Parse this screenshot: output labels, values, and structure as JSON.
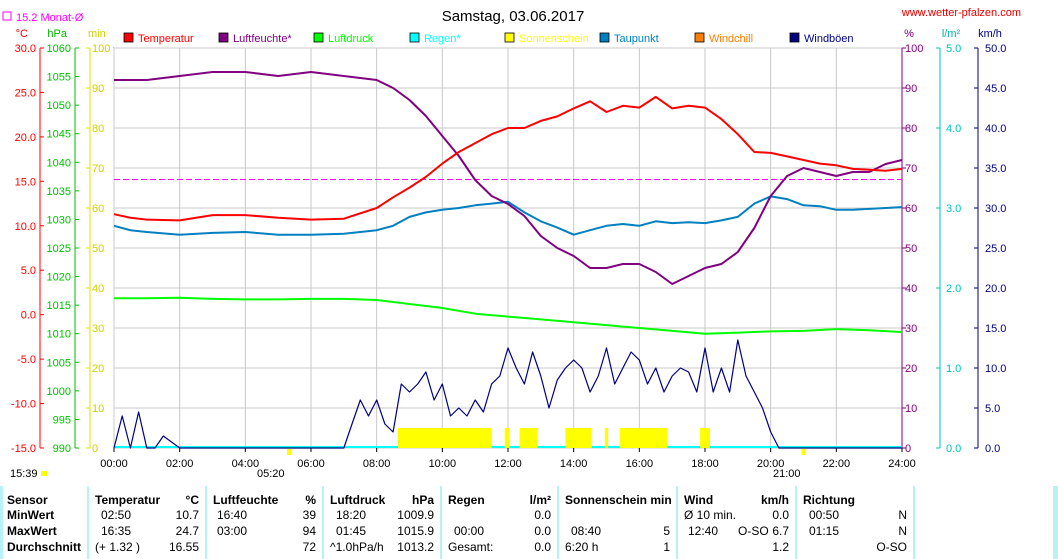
{
  "title": "Samstag, 03.06.2017",
  "website": "www.wetter-pfalzen.com",
  "month_avg_label": "15.2 Monat-Ø",
  "chart_data": {
    "type": "line",
    "x_unit": "hours",
    "xlim": [
      0,
      24
    ],
    "x_ticks": [
      "00:00",
      "02:00",
      "04:00",
      "06:00",
      "08:00",
      "10:00",
      "12:00",
      "14:00",
      "16:00",
      "18:00",
      "20:00",
      "22:00",
      "24:00"
    ],
    "sunrise_label": "05:20",
    "sunset_label": "21:00",
    "dawn_label": "15:39",
    "month_avg_temp": 15.2,
    "axes": {
      "temp": {
        "unit": "°C",
        "ylim": [
          -15,
          30
        ],
        "ticks": [
          "30.0",
          "25.0",
          "20.0",
          "15.0",
          "10.0",
          "5.0",
          "0.0",
          "-5.0",
          "-10.0",
          "-15.0"
        ],
        "color": "#ff0000"
      },
      "pressure": {
        "unit": "hPa",
        "ylim": [
          990,
          1060
        ],
        "ticks": [
          "1060",
          "1055",
          "1050",
          "1045",
          "1040",
          "1035",
          "1030",
          "1025",
          "1020",
          "1015",
          "1010",
          "1005",
          "1000",
          "995",
          "990"
        ],
        "color": "#00c000"
      },
      "sunmin": {
        "unit": "min",
        "ylim": [
          0,
          100
        ],
        "ticks": [
          "100",
          "90",
          "80",
          "70",
          "60",
          "50",
          "40",
          "30",
          "20",
          "10",
          "0"
        ],
        "color": "#e0e000"
      },
      "humidity": {
        "unit": "%",
        "ylim": [
          0,
          100
        ],
        "ticks": [
          "100",
          "90",
          "80",
          "70",
          "60",
          "50",
          "40",
          "30",
          "20",
          "10",
          "0"
        ],
        "color": "#800080"
      },
      "rain": {
        "unit": "l/m²",
        "ylim": [
          0,
          5
        ],
        "ticks": [
          "5.0",
          "4.0",
          "3.0",
          "2.0",
          "1.0",
          "0.0"
        ],
        "color": "#00c0c0"
      },
      "wind": {
        "unit": "km/h",
        "ylim": [
          0,
          50
        ],
        "ticks": [
          "50.0",
          "45.0",
          "40.0",
          "35.0",
          "30.0",
          "25.0",
          "20.0",
          "15.0",
          "10.0",
          "5.0",
          "0.0"
        ],
        "color": "#000080"
      }
    },
    "legend": [
      {
        "name": "Temperatur",
        "color": "#ff0000"
      },
      {
        "name": "Luftfeuchte*",
        "color": "#800080"
      },
      {
        "name": "Luftdruck",
        "color": "#00ff00"
      },
      {
        "name": "Regen*",
        "color": "#00ffff"
      },
      {
        "name": "Sonnenschein",
        "color": "#ffff00"
      },
      {
        "name": "Taupunkt",
        "color": "#0080c0"
      },
      {
        "name": "Windchill",
        "color": "#ff8000"
      },
      {
        "name": "Windböen",
        "color": "#000080"
      }
    ],
    "series": [
      {
        "key": "temperature",
        "axis": "temp",
        "color": "#ff0000",
        "x": [
          0,
          0.5,
          1,
          2,
          3,
          4,
          5,
          6,
          7,
          8,
          8.5,
          9,
          9.5,
          10,
          10.5,
          11,
          11.5,
          12,
          12.5,
          13,
          13.5,
          14,
          14.5,
          15,
          15.5,
          16,
          16.5,
          17,
          17.5,
          18,
          18.5,
          19,
          19.5,
          20,
          20.5,
          21,
          21.5,
          22,
          22.5,
          23,
          23.5,
          24
        ],
        "values": [
          11.3,
          10.9,
          10.7,
          10.6,
          11.2,
          11.2,
          10.9,
          10.7,
          10.8,
          12.0,
          13.2,
          14.3,
          15.5,
          17.0,
          18.3,
          19.3,
          20.3,
          21.0,
          21.0,
          21.8,
          22.3,
          23.2,
          24.0,
          22.8,
          23.5,
          23.3,
          24.5,
          23.2,
          23.5,
          23.3,
          22.0,
          20.3,
          18.3,
          18.2,
          17.8,
          17.4,
          17.0,
          16.8,
          16.4,
          16.3,
          16.2,
          16.4
        ]
      },
      {
        "key": "dewpoint",
        "axis": "temp",
        "color": "#0080c0",
        "x": [
          0,
          0.5,
          1,
          2,
          3,
          4,
          5,
          6,
          7,
          8,
          8.5,
          9,
          9.5,
          10,
          10.5,
          11,
          11.5,
          12,
          12.5,
          13,
          13.5,
          14,
          14.5,
          15,
          15.5,
          16,
          16.5,
          17,
          17.5,
          18,
          18.5,
          19,
          19.5,
          20,
          20.5,
          21,
          21.5,
          22,
          22.5,
          23,
          23.5,
          24
        ],
        "values": [
          10.0,
          9.5,
          9.3,
          9.0,
          9.2,
          9.3,
          9.0,
          9.0,
          9.1,
          9.5,
          10.0,
          11.0,
          11.5,
          11.8,
          12.0,
          12.3,
          12.5,
          12.7,
          11.5,
          10.5,
          9.8,
          9.0,
          9.5,
          10.0,
          10.2,
          10.0,
          10.5,
          10.3,
          10.4,
          10.3,
          10.6,
          11.0,
          12.5,
          13.3,
          13.0,
          12.3,
          12.2,
          11.8,
          11.8,
          11.9,
          12.0,
          12.1
        ]
      },
      {
        "key": "humidity",
        "axis": "humidity",
        "color": "#800080",
        "x": [
          0,
          0.5,
          1,
          2,
          3,
          4,
          5,
          6,
          7,
          8,
          8.5,
          9,
          9.5,
          10,
          10.5,
          11,
          11.5,
          12,
          12.5,
          13,
          13.5,
          14,
          14.5,
          15,
          15.5,
          16,
          16.5,
          17,
          17.5,
          18,
          18.5,
          19,
          19.5,
          20,
          20.5,
          21,
          21.5,
          22,
          22.5,
          23,
          23.5,
          24
        ],
        "values": [
          92,
          92,
          92,
          93,
          94,
          94,
          93,
          94,
          93,
          92,
          90,
          87,
          83,
          78,
          73,
          67,
          63,
          61,
          58,
          53,
          50,
          48,
          45,
          45,
          46,
          46,
          44,
          41,
          43,
          45,
          46,
          49,
          55,
          63,
          68,
          70,
          69,
          68,
          69,
          69,
          71,
          72
        ]
      },
      {
        "key": "pressure",
        "axis": "pressure",
        "color": "#00ff00",
        "x": [
          0,
          1,
          2,
          3,
          4,
          5,
          6,
          7,
          8,
          9,
          10,
          11,
          12,
          13,
          14,
          15,
          16,
          17,
          18,
          19,
          20,
          21,
          22,
          23,
          24
        ],
        "values": [
          1016.2,
          1016.2,
          1016.3,
          1016.1,
          1016.0,
          1016.0,
          1016.1,
          1016.1,
          1015.9,
          1015.2,
          1014.5,
          1013.5,
          1013.0,
          1012.5,
          1012.0,
          1011.5,
          1011.0,
          1010.5,
          1010.0,
          1010.2,
          1010.4,
          1010.5,
          1010.8,
          1010.6,
          1010.3
        ]
      },
      {
        "key": "gusts",
        "axis": "wind",
        "color": "#000080",
        "x": [
          0,
          0.25,
          0.5,
          0.75,
          1,
          1.25,
          1.5,
          2,
          3,
          4,
          4.5,
          5,
          6,
          6.5,
          7,
          7.25,
          7.5,
          7.75,
          8,
          8.25,
          8.5,
          8.75,
          9,
          9.25,
          9.5,
          9.75,
          10,
          10.25,
          10.5,
          10.75,
          11,
          11.25,
          11.5,
          11.75,
          12,
          12.25,
          12.5,
          12.75,
          13,
          13.25,
          13.5,
          13.75,
          14,
          14.25,
          14.5,
          14.75,
          15,
          15.25,
          15.5,
          15.75,
          16,
          16.25,
          16.5,
          16.75,
          17,
          17.25,
          17.5,
          17.75,
          18,
          18.25,
          18.5,
          18.75,
          19,
          19.25,
          19.5,
          19.75,
          20,
          20.25,
          20.5,
          21,
          21.25,
          21.5,
          22,
          22.25,
          22.5,
          23,
          23.25,
          23.5,
          24
        ],
        "values": [
          0,
          4,
          0,
          4.5,
          0,
          0,
          1.5,
          0,
          0,
          0,
          0,
          0,
          0,
          0,
          0,
          3,
          6,
          4,
          6,
          3,
          2,
          8,
          7,
          8,
          9.5,
          6,
          8,
          4,
          5,
          4,
          6,
          4.5,
          8,
          9,
          12.5,
          10,
          8,
          12,
          9,
          5,
          8.5,
          10,
          11,
          10,
          7,
          9,
          12.5,
          8,
          10,
          12,
          11,
          8,
          10,
          7,
          9,
          10,
          9.5,
          7,
          12.5,
          7,
          10,
          7,
          13.5,
          9,
          7,
          5,
          2,
          0,
          0,
          0,
          0,
          0,
          0,
          0,
          0,
          0,
          0,
          0,
          0
        ]
      },
      {
        "key": "sunshine",
        "axis": "sunmin",
        "color": "#ffff00",
        "bars": [
          [
            8.65,
            11.5
          ],
          [
            11.9,
            12.05
          ],
          [
            12.35,
            12.9
          ],
          [
            13.75,
            14.55
          ],
          [
            14.95,
            15.05
          ],
          [
            15.4,
            16.85
          ],
          [
            17.85,
            18.15
          ]
        ],
        "bar_height": 5
      }
    ]
  },
  "table": {
    "columns": [
      {
        "header": "Sensor",
        "min": "MinWert",
        "max": "MaxWert",
        "avg": "Durchschnitt"
      },
      {
        "header": "Temperatur",
        "unit": "°C",
        "min_time": "02:50",
        "min_val": "10.7",
        "max_time": "16:35",
        "max_val": "24.7",
        "avg_extra": "(+ 1.32 )",
        "avg_val": "16.55"
      },
      {
        "header": "Luftfeuchte",
        "unit": "%",
        "min_time": "16:40",
        "min_val": "39",
        "max_time": "03:00",
        "max_val": "94",
        "avg_val": "72"
      },
      {
        "header": "Luftdruck",
        "unit": "hPa",
        "min_time": "18:20",
        "min_val": "1009.9",
        "max_time": "01:45",
        "max_val": "1015.9",
        "avg_extra": "^1.0hPa/h",
        "avg_val": "1013.2"
      },
      {
        "header": "Regen",
        "unit": "l/m²",
        "min_val": "0.0",
        "max_time": "00:00",
        "max_val": "0.0",
        "avg_extra": "Gesamt:",
        "avg_val": "0.0"
      },
      {
        "header": "Sonnenschein min",
        "max_time": "08:40",
        "max_val": "5",
        "avg_extra": "6:20 h",
        "avg_val": "1"
      },
      {
        "header": "Wind",
        "unit": "km/h",
        "min_time": "Ø 10 min.",
        "min_val": "0.0",
        "max_time": "12:40",
        "max_dir": "O-SO",
        "max_val": "6.7",
        "avg_val": "1.2"
      },
      {
        "header": "Richtung",
        "min_time": "00:50",
        "min_val": "N",
        "max_time": "01:15",
        "max_val": "N",
        "avg_val": "O-SO"
      }
    ]
  }
}
